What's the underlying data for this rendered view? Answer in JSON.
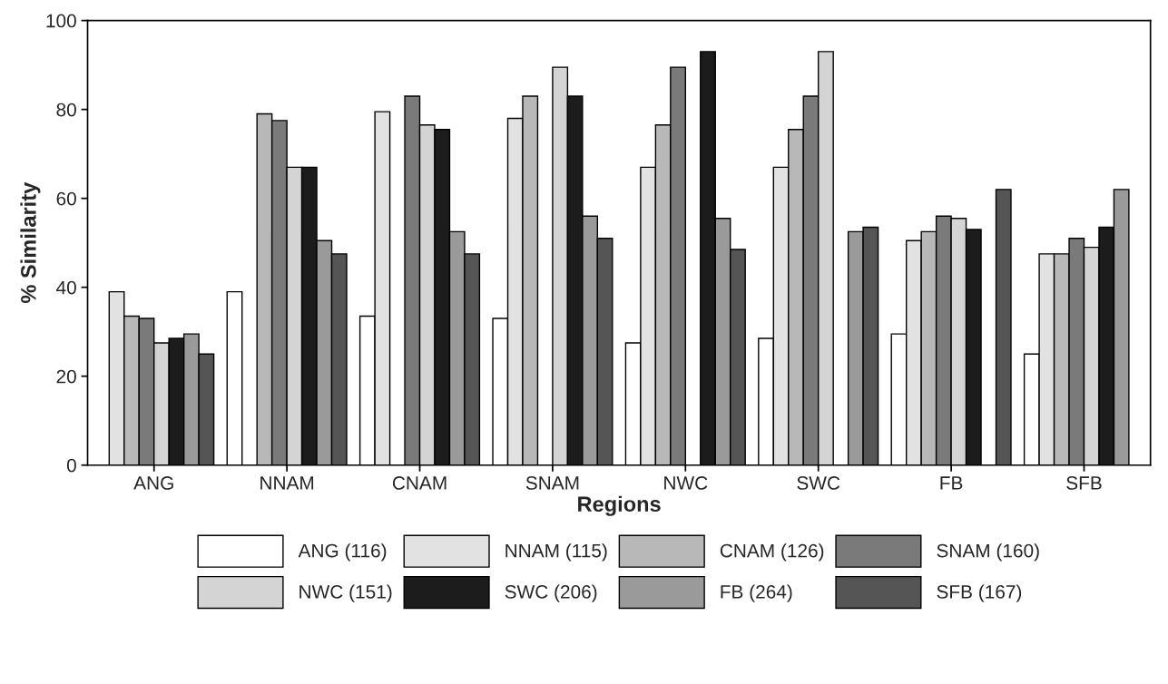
{
  "chart_data": {
    "type": "bar",
    "xlabel": "Regions",
    "ylabel": "% Similarity",
    "categories": [
      "ANG",
      "NNAM",
      "CNAM",
      "SNAM",
      "NWC",
      "SWC",
      "FB",
      "SFB"
    ],
    "series": [
      {
        "name": "ANG (116)",
        "color": "#ffffff",
        "values": [
          null,
          39,
          33.5,
          33,
          27.5,
          28.5,
          29.5,
          25
        ]
      },
      {
        "name": "NNAM (115)",
        "color": "#e2e2e2",
        "values": [
          39,
          null,
          79.5,
          78,
          67,
          67,
          50.5,
          47.5
        ]
      },
      {
        "name": "CNAM (126)",
        "color": "#b8b8b8",
        "values": [
          33.5,
          79,
          null,
          83,
          76.5,
          75.5,
          52.5,
          47.5
        ]
      },
      {
        "name": "SNAM (160)",
        "color": "#7a7a7a",
        "values": [
          33,
          77.5,
          83,
          null,
          89.5,
          83,
          56,
          51
        ]
      },
      {
        "name": "NWC (151)",
        "color": "#d4d4d4",
        "values": [
          27.5,
          67,
          76.5,
          89.5,
          null,
          93,
          55.5,
          49
        ]
      },
      {
        "name": "SWC (206)",
        "color": "#1c1c1c",
        "values": [
          28.5,
          67,
          75.5,
          83,
          93,
          null,
          53,
          53.5
        ]
      },
      {
        "name": "FB (264)",
        "color": "#9a9a9a",
        "values": [
          29.5,
          50.5,
          52.5,
          56,
          55.5,
          52.5,
          null,
          62
        ]
      },
      {
        "name": "SFB (167)",
        "color": "#555555",
        "values": [
          25,
          47.5,
          47.5,
          51,
          48.5,
          53.5,
          62,
          null
        ]
      }
    ],
    "ylim": [
      0,
      100
    ],
    "yticks": [
      0,
      20,
      40,
      60,
      80,
      100
    ],
    "grid": false,
    "legend": "bottom"
  }
}
